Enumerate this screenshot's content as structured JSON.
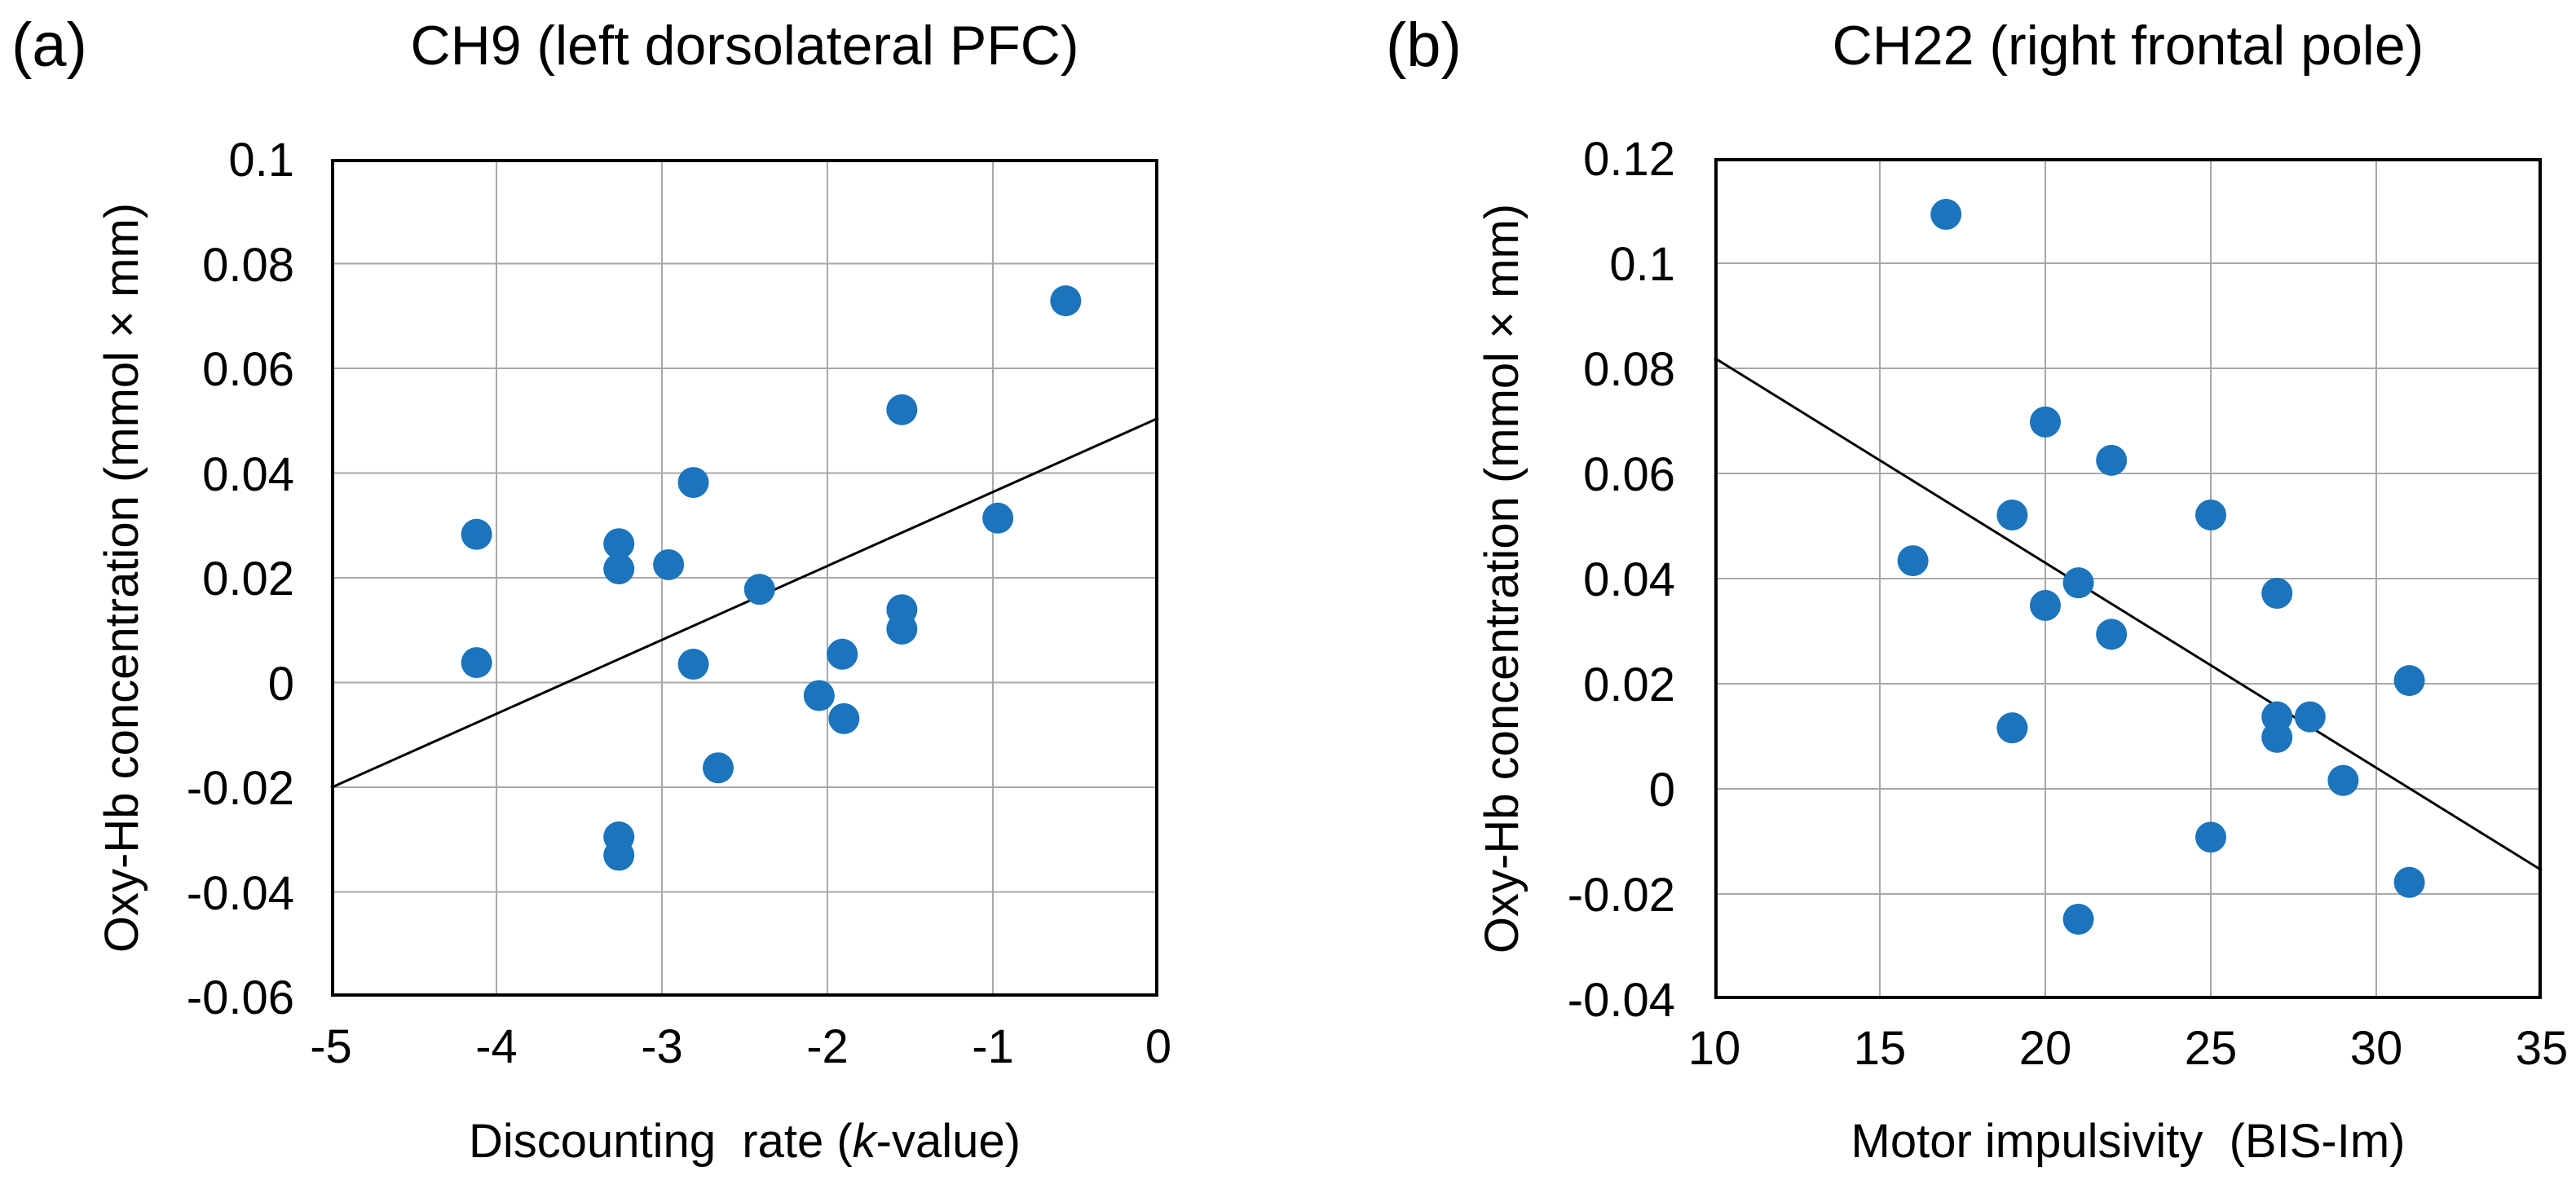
{
  "figure": {
    "background": "#ffffff",
    "text_color": "#000000",
    "grid_color": "#a8a8a8",
    "border_color": "#000000"
  },
  "chart_data": [
    {
      "type": "scatter",
      "panel_label": "(a)",
      "title": "CH9 (left dorsolateral PFC)",
      "xlabel_prefix": "Discounting  rate (",
      "xlabel_italic": "k",
      "xlabel_suffix": "-value)",
      "ylabel": "Oxy-Hb concentration (mmol × mm)",
      "xlim": [
        -5,
        0
      ],
      "ylim": [
        -0.06,
        0.1
      ],
      "grid": true,
      "legend": "none",
      "x_ticks": [
        -5,
        -4,
        -3,
        -2,
        -1,
        0
      ],
      "x_tick_labels": [
        "-5",
        "-4",
        "-3",
        "-2",
        "-1",
        "0"
      ],
      "y_ticks": [
        0.1,
        0.08,
        0.06,
        0.04,
        0.02,
        0,
        -0.02,
        -0.04,
        -0.06
      ],
      "y_tick_labels": [
        "0.1",
        "0.08",
        "0.06",
        "0.04",
        "0.02",
        "0",
        "-0.02",
        "-0.04",
        "-0.06"
      ],
      "point_color": "#1b74bc",
      "trend_color": "#000000",
      "points": [
        [
          -4.12,
          0.0283
        ],
        [
          -4.12,
          0.0038
        ],
        [
          -3.26,
          0.0265
        ],
        [
          -3.26,
          0.0217
        ],
        [
          -3.26,
          -0.0295
        ],
        [
          -3.26,
          -0.033
        ],
        [
          -2.96,
          0.0225
        ],
        [
          -2.81,
          0.0382
        ],
        [
          -2.81,
          0.0035
        ],
        [
          -2.66,
          -0.0163
        ],
        [
          -2.41,
          0.0178
        ],
        [
          -2.05,
          -0.0025
        ],
        [
          -1.91,
          0.0054
        ],
        [
          -1.9,
          -0.0069
        ],
        [
          -1.55,
          0.0521
        ],
        [
          -1.55,
          0.0139
        ],
        [
          -1.55,
          0.0102
        ],
        [
          -0.97,
          0.0314
        ],
        [
          -0.56,
          0.0729
        ]
      ],
      "trendline": {
        "x1": -5,
        "y1": -0.0201,
        "x2": 0,
        "y2": 0.0505
      }
    },
    {
      "type": "scatter",
      "panel_label": "(b)",
      "title": "CH22 (right frontal pole)",
      "xlabel_prefix": "Motor impulsivity  (BIS-Im)",
      "xlabel_italic": "",
      "xlabel_suffix": "",
      "ylabel": "Oxy-Hb concentration (mmol × mm)",
      "xlim": [
        10,
        35
      ],
      "ylim": [
        -0.04,
        0.12
      ],
      "grid": true,
      "legend": "none",
      "x_ticks": [
        10,
        15,
        20,
        25,
        30,
        35
      ],
      "x_tick_labels": [
        "10",
        "15",
        "20",
        "25",
        "30",
        "35"
      ],
      "y_ticks": [
        0.12,
        0.1,
        0.08,
        0.06,
        0.04,
        0.02,
        0,
        -0.02,
        -0.04
      ],
      "y_tick_labels": [
        "0.12",
        "0.1",
        "0.08",
        "0.06",
        "0.04",
        "0.02",
        "0",
        "-0.02",
        "-0.04"
      ],
      "point_color": "#1b74bc",
      "trend_color": "#000000",
      "points": [
        [
          17,
          0.1093
        ],
        [
          16,
          0.0434
        ],
        [
          19,
          0.0521
        ],
        [
          19,
          0.0116
        ],
        [
          20,
          0.0698
        ],
        [
          20,
          0.0349
        ],
        [
          21,
          0.0392
        ],
        [
          21,
          -0.0248
        ],
        [
          22,
          0.0625
        ],
        [
          22,
          0.0294
        ],
        [
          25,
          0.0521
        ],
        [
          25,
          -0.0092
        ],
        [
          27,
          0.0372
        ],
        [
          27,
          0.0137
        ],
        [
          27,
          0.0098
        ],
        [
          28,
          0.0137
        ],
        [
          29,
          0.0016
        ],
        [
          31,
          0.0206
        ],
        [
          31,
          -0.0178
        ]
      ],
      "trendline": {
        "x1": 10,
        "y1": 0.082,
        "x2": 35,
        "y2": -0.0155
      }
    }
  ]
}
